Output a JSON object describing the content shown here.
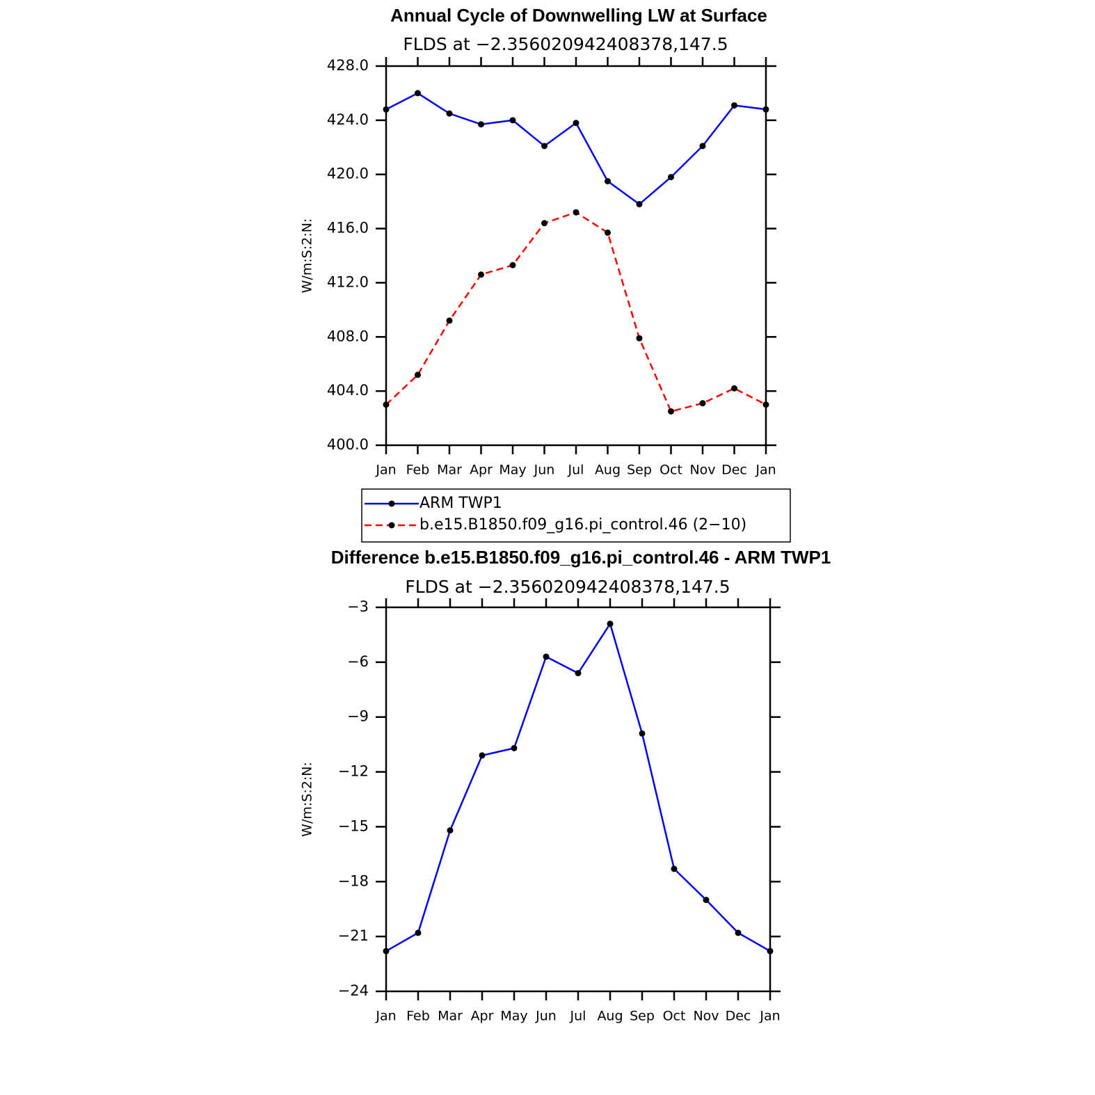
{
  "chart_data": [
    {
      "type": "line",
      "title": "Annual Cycle of Downwelling LW at Surface",
      "subtitle": "FLDS at −2.356020942408378,147.5",
      "y_label": "W/m:S:2:N:",
      "categories": [
        "Jan",
        "Feb",
        "Mar",
        "Apr",
        "May",
        "Jun",
        "Jul",
        "Aug",
        "Sep",
        "Oct",
        "Nov",
        "Dec",
        "Jan"
      ],
      "series": [
        {
          "name": "ARM TWP1",
          "color": "#0000ff",
          "dash": "solid",
          "values": [
            424.8,
            426.0,
            424.5,
            423.7,
            424.0,
            422.1,
            423.8,
            419.5,
            417.8,
            419.8,
            422.1,
            425.1,
            424.8
          ]
        },
        {
          "name": "b.e15.B1850.f09_g16.pi_control.46 (2−10)",
          "color": "#ff0000",
          "dash": "dashed",
          "values": [
            403.0,
            405.2,
            409.2,
            412.6,
            413.3,
            416.4,
            417.2,
            415.7,
            407.9,
            402.5,
            403.1,
            404.2,
            403.0
          ]
        }
      ],
      "ylim": [
        400,
        428
      ],
      "yticks": [
        {
          "value": 400,
          "label": "400.0"
        },
        {
          "value": 404,
          "label": "404.0"
        },
        {
          "value": 408,
          "label": "408.0"
        },
        {
          "value": 412,
          "label": "412.0"
        },
        {
          "value": 416,
          "label": "416.0"
        },
        {
          "value": 420,
          "label": "420.0"
        },
        {
          "value": 424,
          "label": "424.0"
        },
        {
          "value": 428,
          "label": "428.0"
        }
      ],
      "legend": "below"
    },
    {
      "type": "line",
      "title": "Difference b.e15.B1850.f09_g16.pi_control.46 - ARM TWP1",
      "subtitle": "FLDS at −2.356020942408378,147.5",
      "y_label": "W/m:S:2:N:",
      "categories": [
        "Jan",
        "Feb",
        "Mar",
        "Apr",
        "May",
        "Jun",
        "Jul",
        "Aug",
        "Sep",
        "Oct",
        "Nov",
        "Dec",
        "Jan"
      ],
      "series": [
        {
          "color": "#0000ff",
          "dash": "solid",
          "values": [
            -21.8,
            -20.8,
            -15.2,
            -11.1,
            -10.7,
            -5.7,
            -6.6,
            -3.9,
            -9.9,
            -17.3,
            -19.0,
            -20.8,
            -21.8
          ]
        }
      ],
      "ylim": [
        -24,
        -3
      ],
      "yticks": [
        {
          "value": -24,
          "label": "−24"
        },
        {
          "value": -21,
          "label": "−21"
        },
        {
          "value": -18,
          "label": "−18"
        },
        {
          "value": -15,
          "label": "−15"
        },
        {
          "value": -12,
          "label": "−12"
        },
        {
          "value": -9,
          "label": "−9"
        },
        {
          "value": -6,
          "label": "−6"
        },
        {
          "value": -3,
          "label": "−3"
        }
      ]
    }
  ]
}
